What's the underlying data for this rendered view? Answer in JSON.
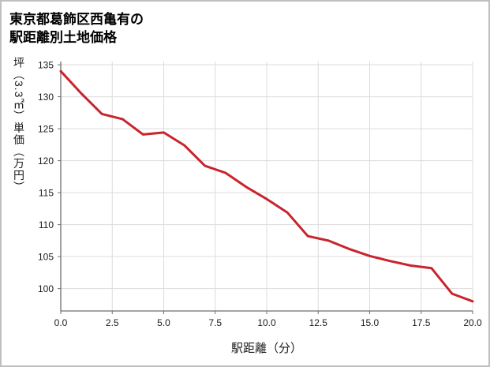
{
  "chart_data": {
    "type": "line",
    "title": "東京都葛飾区西亀有の駅距離別土地価格",
    "title_lines": [
      "東京都葛飾区西亀有の",
      "駅距離別土地価格"
    ],
    "xlabel": "駅距離（分）",
    "ylabel": "坪（3.3㎡）単価（万円）",
    "x": [
      0,
      1,
      2,
      3,
      4,
      5,
      6,
      7,
      8,
      9,
      10,
      11,
      12,
      13,
      14,
      15,
      16,
      17,
      18,
      19,
      20
    ],
    "y": [
      134.0,
      130.5,
      127.3,
      126.5,
      124.1,
      124.4,
      122.4,
      119.2,
      118.1,
      115.9,
      114.0,
      111.9,
      108.2,
      107.5,
      106.2,
      105.1,
      104.3,
      103.6,
      103.2,
      99.2,
      98.0
    ],
    "xlim": [
      0,
      20
    ],
    "ylim": [
      96.5,
      135.5
    ],
    "xticks": [
      0,
      2.5,
      5,
      7.5,
      10,
      12.5,
      15,
      17.5,
      20
    ],
    "xtick_labels": [
      "0.0",
      "2.5",
      "5.0",
      "7.5",
      "10.0",
      "12.5",
      "15.0",
      "17.5",
      "20.0"
    ],
    "yticks": [
      100,
      105,
      110,
      115,
      120,
      125,
      130,
      135
    ],
    "ytick_labels": [
      "100",
      "105",
      "110",
      "115",
      "120",
      "125",
      "130",
      "135"
    ],
    "grid": true,
    "legend": "none",
    "line_color": "#c9242c",
    "line_width": 3,
    "grid_color": "#dcdcdc",
    "spine_color": "#6e6e6e"
  }
}
